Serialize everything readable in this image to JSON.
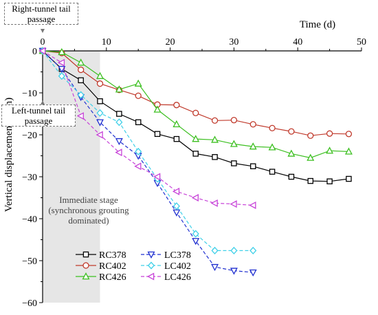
{
  "chart_data": {
    "type": "line",
    "xlabel": "Time (d)",
    "ylabel": "Vertical displacement (mm)",
    "xlim": [
      0,
      50
    ],
    "ylim": [
      -60,
      0
    ],
    "xticks": [
      "0",
      "10",
      "20",
      "30",
      "40",
      "50"
    ],
    "yticks": [
      "0",
      "−10",
      "−20",
      "−30",
      "−40",
      "−50",
      "−60"
    ],
    "x_axis_position": "top",
    "grid": false,
    "legend_position": "bottom-center",
    "shaded_region": {
      "x": [
        0,
        9
      ],
      "color": "#e6e6e6"
    },
    "annotations": {
      "right_tunnel": [
        "Right-tunnel tail",
        "passage"
      ],
      "left_tunnel": [
        "Left-tunnel tail",
        "passage"
      ],
      "stage": [
        "Immediate stage",
        "(synchronous grouting",
        "dominated)"
      ]
    },
    "series": [
      {
        "name": "RC378",
        "color": "#000000",
        "marker": "square",
        "dash": false,
        "x": [
          0,
          3,
          6,
          9,
          12,
          15,
          18,
          21,
          24,
          27,
          30,
          33,
          36,
          39,
          42,
          45,
          48
        ],
        "y": [
          0,
          -4.3,
          -7,
          -12,
          -15,
          -17,
          -19.8,
          -21,
          -24.5,
          -25.3,
          -26.8,
          -27.5,
          -28.8,
          -30,
          -31,
          -31.1,
          -30.5
        ]
      },
      {
        "name": "RC402",
        "color": "#c0392b",
        "marker": "circle",
        "dash": false,
        "x": [
          0,
          3,
          6,
          9,
          12,
          15,
          18,
          21,
          24,
          27,
          30,
          33,
          36,
          39,
          42,
          45,
          48
        ],
        "y": [
          0,
          -0.5,
          -4.5,
          -7.8,
          -9.3,
          -10.7,
          -12.8,
          -12.9,
          -14.8,
          -16.6,
          -16.5,
          -17.5,
          -18.4,
          -19.2,
          -20.2,
          -19.7,
          -19.8
        ]
      },
      {
        "name": "RC426",
        "color": "#3bbf1f",
        "marker": "triangle-up",
        "dash": false,
        "x": [
          0,
          3,
          6,
          9,
          12,
          15,
          18,
          21,
          24,
          27,
          30,
          33,
          36,
          39,
          42,
          45,
          48
        ],
        "y": [
          0,
          -0.3,
          -2.8,
          -6,
          -9.2,
          -7.8,
          -14,
          -17.5,
          -21,
          -21.2,
          -22.2,
          -22.8,
          -23,
          -24.5,
          -25.5,
          -23.8,
          -24
        ]
      },
      {
        "name": "LC378",
        "color": "#1f2fd0",
        "marker": "triangle-down",
        "dash": true,
        "x": [
          0,
          3,
          6,
          9,
          12,
          15,
          18,
          21,
          24,
          27,
          30,
          33
        ],
        "y": [
          0,
          -4.3,
          -11,
          -17,
          -21.5,
          -25,
          -31.5,
          -38.5,
          -45.3,
          -51.5,
          -52.4,
          -52.8
        ]
      },
      {
        "name": "LC402",
        "color": "#3fd0e8",
        "marker": "diamond",
        "dash": true,
        "x": [
          0,
          3,
          6,
          9,
          12,
          15,
          18,
          21,
          24,
          27,
          30,
          33
        ],
        "y": [
          0,
          -6,
          -10.5,
          -14.8,
          -17,
          -24,
          -30.5,
          -37,
          -43.6,
          -47.6,
          -47.6,
          -47.6
        ]
      },
      {
        "name": "LC426",
        "color": "#c742d8",
        "marker": "triangle-left",
        "dash": true,
        "x": [
          0,
          3,
          6,
          9,
          12,
          15,
          18,
          21,
          24,
          27,
          30,
          33
        ],
        "y": [
          0,
          -2.8,
          -15.5,
          -20,
          -24.2,
          -27.5,
          -30,
          -33.5,
          -35,
          -36.3,
          -36.5,
          -36.8
        ]
      }
    ]
  }
}
